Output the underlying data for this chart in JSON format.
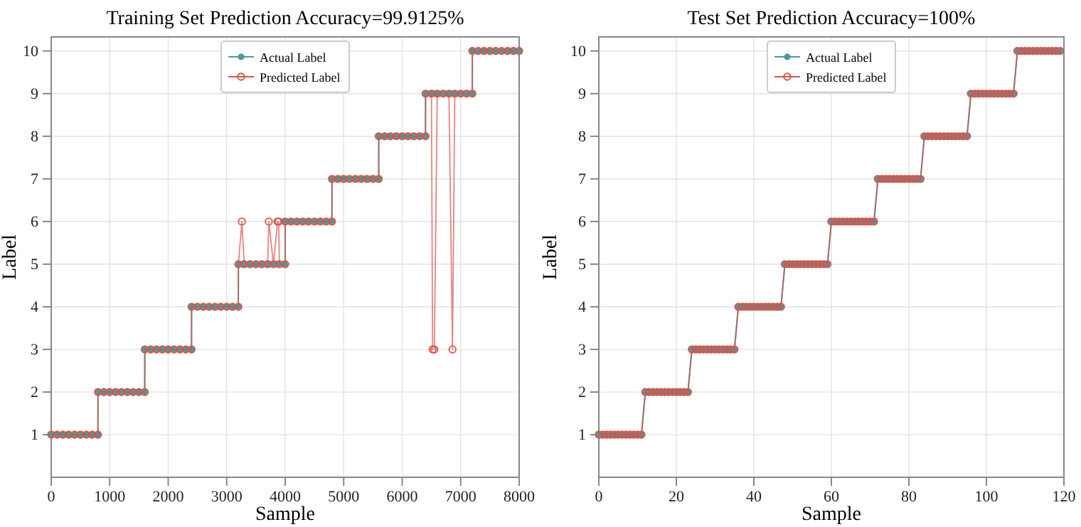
{
  "chart_data": [
    {
      "type": "line",
      "title": "Training Set Prediction Accuracy=99.9125%",
      "xlabel": "Sample",
      "ylabel": "Label",
      "x": [
        0,
        100,
        200,
        300,
        400,
        500,
        600,
        700,
        799,
        800,
        900,
        1000,
        1100,
        1200,
        1300,
        1400,
        1500,
        1599,
        1600,
        1700,
        1800,
        1900,
        2000,
        2100,
        2200,
        2300,
        2399,
        2400,
        2500,
        2600,
        2700,
        2800,
        2900,
        3000,
        3100,
        3199,
        3200,
        3260,
        3300,
        3400,
        3500,
        3600,
        3700,
        3720,
        3800,
        3870,
        3890,
        3900,
        3999,
        4000,
        4100,
        4200,
        4300,
        4400,
        4500,
        4600,
        4700,
        4799,
        4800,
        4900,
        5000,
        5100,
        5200,
        5300,
        5400,
        5500,
        5599,
        5600,
        5700,
        5800,
        5900,
        6000,
        6100,
        6200,
        6300,
        6399,
        6400,
        6500,
        6520,
        6550,
        6600,
        6700,
        6800,
        6860,
        6900,
        7000,
        7100,
        7199,
        7200,
        7300,
        7400,
        7500,
        7600,
        7700,
        7800,
        7900,
        7999
      ],
      "series": [
        {
          "name": "Actual Label",
          "color": "#4e9a9a",
          "marker": "circle",
          "values": [
            1,
            1,
            1,
            1,
            1,
            1,
            1,
            1,
            1,
            2,
            2,
            2,
            2,
            2,
            2,
            2,
            2,
            2,
            3,
            3,
            3,
            3,
            3,
            3,
            3,
            3,
            3,
            4,
            4,
            4,
            4,
            4,
            4,
            4,
            4,
            4,
            5,
            5,
            5,
            5,
            5,
            5,
            5,
            5,
            5,
            5,
            5,
            5,
            5,
            6,
            6,
            6,
            6,
            6,
            6,
            6,
            6,
            6,
            7,
            7,
            7,
            7,
            7,
            7,
            7,
            7,
            7,
            8,
            8,
            8,
            8,
            8,
            8,
            8,
            8,
            8,
            9,
            9,
            9,
            9,
            9,
            9,
            9,
            9,
            9,
            9,
            9,
            9,
            10,
            10,
            10,
            10,
            10,
            10,
            10,
            10,
            10
          ]
        },
        {
          "name": "Predicted Label",
          "color": "#d9534a",
          "marker": "circle",
          "values": [
            1,
            1,
            1,
            1,
            1,
            1,
            1,
            1,
            1,
            2,
            2,
            2,
            2,
            2,
            2,
            2,
            2,
            2,
            3,
            3,
            3,
            3,
            3,
            3,
            3,
            3,
            3,
            4,
            4,
            4,
            4,
            4,
            4,
            4,
            4,
            4,
            5,
            6,
            5,
            5,
            5,
            5,
            5,
            6,
            5,
            6,
            6,
            5,
            5,
            6,
            6,
            6,
            6,
            6,
            6,
            6,
            6,
            6,
            7,
            7,
            7,
            7,
            7,
            7,
            7,
            7,
            7,
            8,
            8,
            8,
            8,
            8,
            8,
            8,
            8,
            8,
            9,
            9,
            3,
            3,
            9,
            9,
            9,
            3,
            9,
            9,
            9,
            9,
            10,
            10,
            10,
            10,
            10,
            10,
            10,
            10,
            10
          ]
        }
      ],
      "xlim": [
        0,
        8000
      ],
      "xticks": [
        0,
        1000,
        2000,
        3000,
        4000,
        5000,
        6000,
        7000,
        8000
      ],
      "ylim": [
        0,
        10.33
      ],
      "yticks": [
        1,
        2,
        3,
        4,
        5,
        6,
        7,
        8,
        9,
        10
      ],
      "grid": true,
      "legend": "top"
    },
    {
      "type": "line",
      "title": "Test Set Prediction Accuracy=100%",
      "xlabel": "Sample",
      "ylabel": "Label",
      "x": [
        0,
        1,
        2,
        3,
        4,
        5,
        6,
        7,
        8,
        9,
        10,
        11,
        12,
        13,
        14,
        15,
        16,
        17,
        18,
        19,
        20,
        21,
        22,
        23,
        24,
        25,
        26,
        27,
        28,
        29,
        30,
        31,
        32,
        33,
        34,
        35,
        36,
        37,
        38,
        39,
        40,
        41,
        42,
        43,
        44,
        45,
        46,
        47,
        48,
        49,
        50,
        51,
        52,
        53,
        54,
        55,
        56,
        57,
        58,
        59,
        60,
        61,
        62,
        63,
        64,
        65,
        66,
        67,
        68,
        69,
        70,
        71,
        72,
        73,
        74,
        75,
        76,
        77,
        78,
        79,
        80,
        81,
        82,
        83,
        84,
        85,
        86,
        87,
        88,
        89,
        90,
        91,
        92,
        93,
        94,
        95,
        96,
        97,
        98,
        99,
        100,
        101,
        102,
        103,
        104,
        105,
        106,
        107,
        108,
        109,
        110,
        111,
        112,
        113,
        114,
        115,
        116,
        117,
        118,
        119
      ],
      "series": [
        {
          "name": "Actual Label",
          "color": "#4e9a9a",
          "marker": "circle",
          "values": [
            1,
            1,
            1,
            1,
            1,
            1,
            1,
            1,
            1,
            1,
            1,
            1,
            2,
            2,
            2,
            2,
            2,
            2,
            2,
            2,
            2,
            2,
            2,
            2,
            3,
            3,
            3,
            3,
            3,
            3,
            3,
            3,
            3,
            3,
            3,
            3,
            4,
            4,
            4,
            4,
            4,
            4,
            4,
            4,
            4,
            4,
            4,
            4,
            5,
            5,
            5,
            5,
            5,
            5,
            5,
            5,
            5,
            5,
            5,
            5,
            6,
            6,
            6,
            6,
            6,
            6,
            6,
            6,
            6,
            6,
            6,
            6,
            7,
            7,
            7,
            7,
            7,
            7,
            7,
            7,
            7,
            7,
            7,
            7,
            8,
            8,
            8,
            8,
            8,
            8,
            8,
            8,
            8,
            8,
            8,
            8,
            9,
            9,
            9,
            9,
            9,
            9,
            9,
            9,
            9,
            9,
            9,
            9,
            10,
            10,
            10,
            10,
            10,
            10,
            10,
            10,
            10,
            10,
            10,
            10
          ]
        },
        {
          "name": "Predicted Label",
          "color": "#d9534a",
          "marker": "circle",
          "values": [
            1,
            1,
            1,
            1,
            1,
            1,
            1,
            1,
            1,
            1,
            1,
            1,
            2,
            2,
            2,
            2,
            2,
            2,
            2,
            2,
            2,
            2,
            2,
            2,
            3,
            3,
            3,
            3,
            3,
            3,
            3,
            3,
            3,
            3,
            3,
            3,
            4,
            4,
            4,
            4,
            4,
            4,
            4,
            4,
            4,
            4,
            4,
            4,
            5,
            5,
            5,
            5,
            5,
            5,
            5,
            5,
            5,
            5,
            5,
            5,
            6,
            6,
            6,
            6,
            6,
            6,
            6,
            6,
            6,
            6,
            6,
            6,
            7,
            7,
            7,
            7,
            7,
            7,
            7,
            7,
            7,
            7,
            7,
            7,
            8,
            8,
            8,
            8,
            8,
            8,
            8,
            8,
            8,
            8,
            8,
            8,
            9,
            9,
            9,
            9,
            9,
            9,
            9,
            9,
            9,
            9,
            9,
            9,
            10,
            10,
            10,
            10,
            10,
            10,
            10,
            10,
            10,
            10,
            10,
            10
          ]
        }
      ],
      "xlim": [
        0,
        120
      ],
      "xticks": [
        0,
        20,
        40,
        60,
        80,
        100,
        120
      ],
      "ylim": [
        0,
        10.33
      ],
      "yticks": [
        1,
        2,
        3,
        4,
        5,
        6,
        7,
        8,
        9,
        10
      ],
      "grid": true,
      "legend": "top"
    }
  ]
}
